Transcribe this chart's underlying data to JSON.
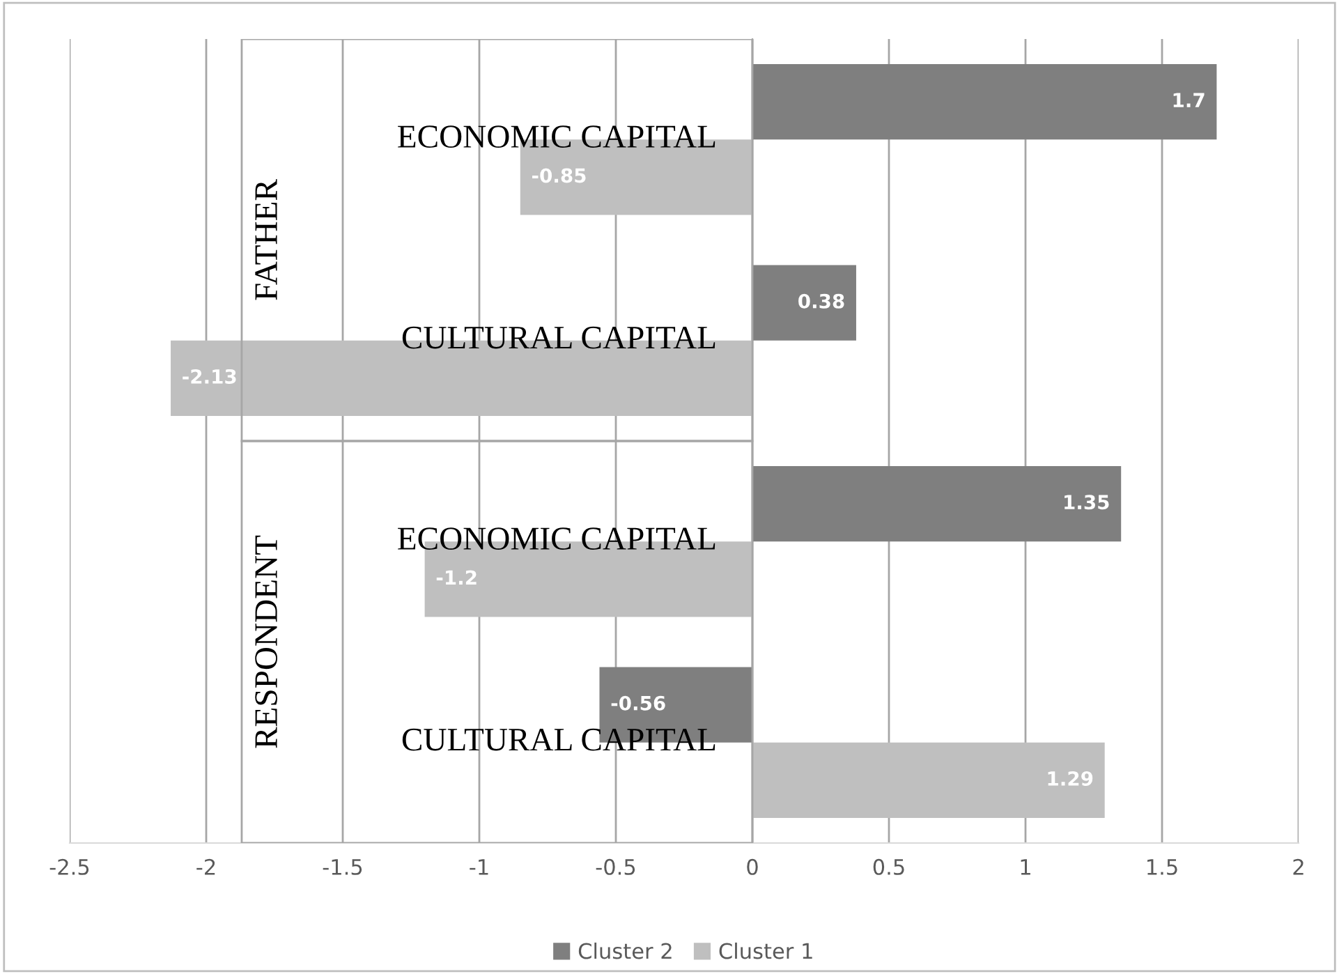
{
  "chart_data": {
    "type": "bar",
    "orientation": "horizontal",
    "categories": [
      "ECONOMIC CAPITAL",
      "CULTURAL CAPITAL",
      "ECONOMIC CAPITAL",
      "CULTURAL CAPITAL"
    ],
    "series": [
      {
        "name": "Cluster 2",
        "color": "#7f7f7f",
        "values": [
          1.7,
          0.38,
          1.35,
          -0.56
        ]
      },
      {
        "name": "Cluster 1",
        "color": "#bfbfbf",
        "values": [
          -0.85,
          -2.13,
          -1.2,
          1.29
        ]
      }
    ],
    "annotations": [
      "FATHER",
      "RESPONDENT"
    ],
    "xlim": [
      -2.5,
      2
    ],
    "xticks": [
      -2.5,
      -2,
      -1.5,
      -1,
      -0.5,
      0,
      0.5,
      1,
      1.5,
      2
    ],
    "grid": "x",
    "legend": "bottom",
    "data_labels": true
  }
}
